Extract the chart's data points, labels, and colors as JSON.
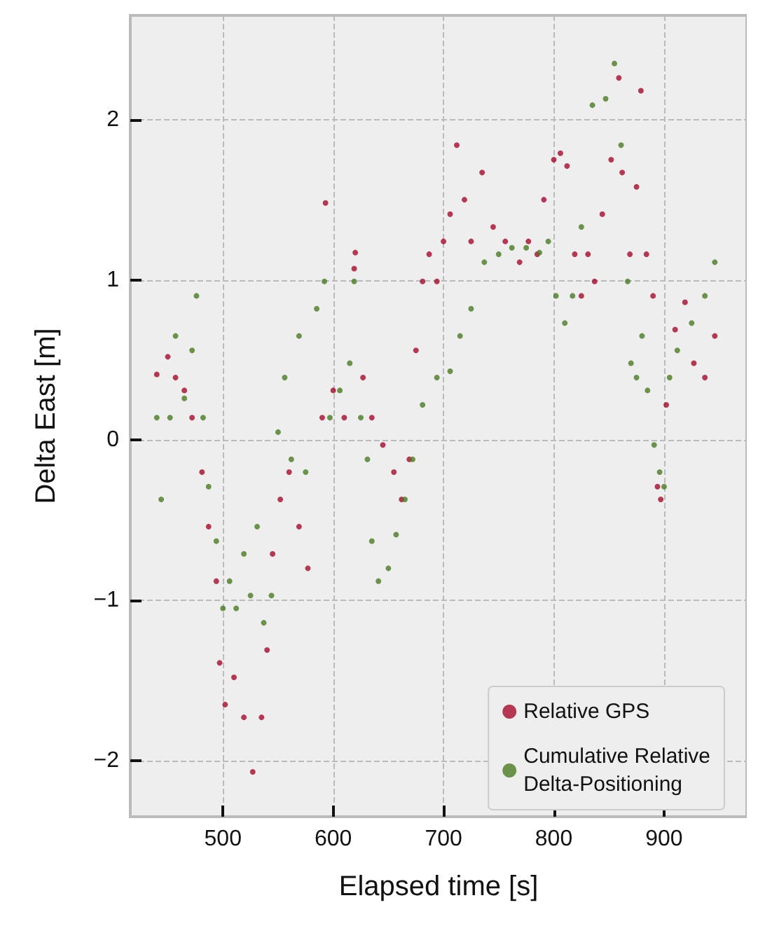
{
  "chart_data": {
    "type": "scatter",
    "xlabel": "Elapsed time [s]",
    "ylabel": "Delta East [m]",
    "xlim": [
      416,
      975
    ],
    "ylim": [
      -2.35,
      2.65
    ],
    "xticks": [
      500,
      600,
      700,
      800,
      900
    ],
    "yticks": [
      {
        "value": -2,
        "label": "−2"
      },
      {
        "value": -1,
        "label": "−1"
      },
      0,
      1,
      2
    ],
    "grid": true,
    "legend": "bottom right",
    "marker": "circle",
    "series": [
      {
        "name": "Relative GPS",
        "color": "#a50a2a",
        "x": [
          440,
          450,
          457,
          465,
          472,
          481,
          487,
          494,
          497,
          502,
          510,
          519,
          527,
          535,
          540,
          545,
          552,
          560,
          569,
          577,
          590,
          593,
          600,
          610,
          619,
          620,
          627,
          635,
          645,
          655,
          662,
          669,
          675,
          681,
          687,
          694,
          700,
          706,
          712,
          719,
          725,
          735,
          745,
          756,
          769,
          777,
          785,
          791,
          800,
          806,
          812,
          819,
          825,
          831,
          837,
          844,
          852,
          859,
          862,
          869,
          875,
          879,
          884,
          890,
          894,
          897,
          902,
          910,
          919,
          927,
          937,
          946
        ],
        "values": [
          0.41,
          0.52,
          0.39,
          0.31,
          0.14,
          -0.2,
          -0.54,
          -0.88,
          -1.39,
          -1.65,
          -1.48,
          -1.73,
          -2.07,
          -1.73,
          -1.31,
          -0.71,
          -0.37,
          -0.2,
          -0.54,
          -0.8,
          0.14,
          1.48,
          0.31,
          0.14,
          1.07,
          1.17,
          0.39,
          0.14,
          -0.03,
          -0.2,
          -0.37,
          -0.12,
          0.56,
          0.99,
          1.16,
          0.99,
          1.24,
          1.41,
          1.84,
          1.5,
          1.24,
          1.67,
          1.33,
          1.24,
          1.11,
          1.24,
          1.16,
          1.5,
          1.75,
          1.79,
          1.71,
          1.16,
          0.9,
          1.16,
          0.99,
          1.41,
          1.75,
          2.26,
          1.67,
          1.16,
          1.58,
          2.18,
          1.16,
          0.9,
          -0.29,
          -0.37,
          0.22,
          0.69,
          0.86,
          0.48,
          0.39,
          0.65
        ]
      },
      {
        "name": "Cumulative Relative\nDelta-Positioning",
        "color": "#4a7a20",
        "x": [
          440,
          444,
          452,
          457,
          465,
          472,
          476,
          482,
          487,
          494,
          500,
          506,
          512,
          519,
          525,
          531,
          537,
          544,
          550,
          556,
          562,
          569,
          575,
          585,
          592,
          597,
          606,
          615,
          619,
          625,
          631,
          635,
          641,
          650,
          657,
          665,
          672,
          681,
          694,
          706,
          715,
          725,
          737,
          750,
          762,
          775,
          787,
          795,
          802,
          810,
          817,
          825,
          835,
          847,
          855,
          861,
          867,
          870,
          875,
          880,
          885,
          891,
          896,
          900,
          905,
          912,
          925,
          937,
          946
        ],
        "values": [
          0.14,
          -0.37,
          0.14,
          0.65,
          0.26,
          0.56,
          0.9,
          0.14,
          -0.29,
          -0.63,
          -1.05,
          -0.88,
          -1.05,
          -0.71,
          -0.97,
          -0.54,
          -1.14,
          -0.97,
          0.05,
          0.39,
          -0.12,
          0.65,
          -0.2,
          0.82,
          0.99,
          0.14,
          0.31,
          0.48,
          0.99,
          0.14,
          -0.12,
          -0.63,
          -0.88,
          -0.8,
          -0.59,
          -0.37,
          -0.12,
          0.22,
          0.39,
          0.43,
          0.65,
          0.82,
          1.11,
          1.16,
          1.2,
          1.2,
          1.17,
          1.24,
          0.9,
          0.73,
          0.9,
          1.33,
          2.09,
          2.13,
          2.35,
          1.84,
          0.99,
          0.48,
          0.39,
          0.65,
          0.31,
          -0.03,
          -0.2,
          -0.29,
          0.39,
          0.56,
          0.73,
          0.9,
          1.11
        ]
      }
    ]
  }
}
